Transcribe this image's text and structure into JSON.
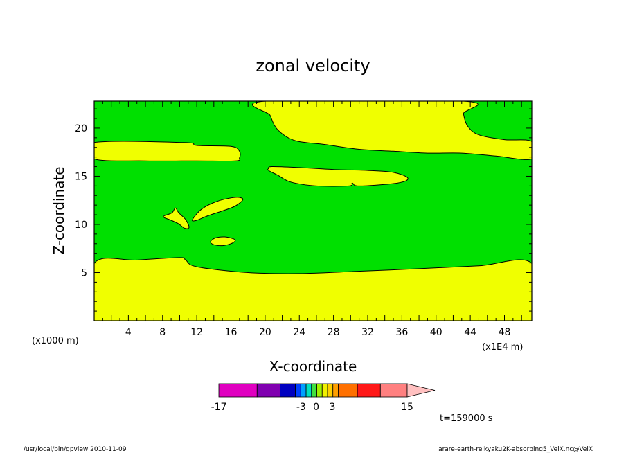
{
  "chart_data": {
    "type": "contour",
    "title": "zonal velocity",
    "xlabel": "X-coordinate",
    "ylabel": "Z-coordinate",
    "x_unit_left": "(x1000 m)",
    "x_unit_right": "(x1E4 m)",
    "xlim": [
      0,
      51.2
    ],
    "ylim": [
      0,
      22.8
    ],
    "x_ticks": [
      4,
      8,
      12,
      16,
      20,
      24,
      28,
      32,
      36,
      40,
      44,
      48
    ],
    "y_ticks": [
      5,
      10,
      15,
      20
    ],
    "colors": {
      "background_region": "#00e000",
      "positive_region": "#f0ff00",
      "outline": "#000000"
    },
    "regions": {
      "bottom_positive_band": [
        [
          0,
          0
        ],
        [
          51.2,
          0
        ],
        [
          51.2,
          5.95
        ],
        [
          45,
          5.7
        ],
        [
          38,
          5.4
        ],
        [
          30,
          5.1
        ],
        [
          24,
          4.9
        ],
        [
          18,
          5.0
        ],
        [
          12,
          5.6
        ],
        [
          10.7,
          6.3
        ],
        [
          10,
          6.55
        ],
        [
          5,
          6.3
        ],
        [
          0,
          5.95
        ]
      ],
      "left_upper_band": [
        [
          0,
          18.5
        ],
        [
          10.5,
          18.5
        ],
        [
          12,
          18.2
        ],
        [
          16,
          18.1
        ],
        [
          17,
          17.6
        ],
        [
          17,
          16.9
        ],
        [
          16.5,
          16.6
        ],
        [
          12,
          16.6
        ],
        [
          6,
          16.6
        ],
        [
          0,
          16.8
        ]
      ],
      "top_middle_lobe": [
        [
          20.1,
          22.8
        ],
        [
          43.2,
          22.8
        ],
        [
          43.2,
          21.5
        ],
        [
          43.7,
          20.2
        ],
        [
          45,
          19.3
        ],
        [
          48,
          18.8
        ],
        [
          51.2,
          18.6
        ],
        [
          51.2,
          16.8
        ],
        [
          47,
          17.1
        ],
        [
          43,
          17.4
        ],
        [
          39,
          17.4
        ],
        [
          35,
          17.6
        ],
        [
          31,
          17.8
        ],
        [
          27,
          18.3
        ],
        [
          23.5,
          18.7
        ],
        [
          21.5,
          19.8
        ],
        [
          20.6,
          21.3
        ]
      ],
      "middle_ellipse": [
        [
          20.4,
          15.8
        ],
        [
          20.8,
          16.0
        ],
        [
          24,
          15.9
        ],
        [
          28,
          15.7
        ],
        [
          32,
          15.6
        ],
        [
          35,
          15.4
        ],
        [
          36.7,
          14.8
        ],
        [
          35.5,
          14.3
        ],
        [
          31,
          14.0
        ],
        [
          30.2,
          14.3
        ],
        [
          29.8,
          14.0
        ],
        [
          26,
          14.0
        ],
        [
          23,
          14.4
        ],
        [
          21.5,
          15.1
        ],
        [
          20.4,
          15.6
        ]
      ],
      "small_blob_a": [
        [
          8.2,
          10.9
        ],
        [
          9.1,
          11.2
        ],
        [
          9.5,
          11.7
        ],
        [
          9.9,
          11.2
        ],
        [
          10.7,
          10.5
        ],
        [
          11.1,
          9.7
        ],
        [
          10.6,
          9.6
        ],
        [
          9.8,
          10.1
        ],
        [
          8.8,
          10.5
        ],
        [
          8.2,
          10.7
        ]
      ],
      "small_blob_b": [
        [
          11.5,
          10.5
        ],
        [
          12.6,
          11.6
        ],
        [
          14.4,
          12.4
        ],
        [
          16.5,
          12.8
        ],
        [
          17.4,
          12.6
        ],
        [
          16.5,
          11.9
        ],
        [
          15,
          11.4
        ],
        [
          13.3,
          10.9
        ],
        [
          11.9,
          10.4
        ]
      ],
      "small_blob_c": [
        [
          13.6,
          8.2
        ],
        [
          14.2,
          8.6
        ],
        [
          15.3,
          8.7
        ],
        [
          16.3,
          8.5
        ],
        [
          16.5,
          8.3
        ],
        [
          16,
          8.0
        ],
        [
          15,
          7.8
        ],
        [
          14,
          7.9
        ]
      ]
    },
    "colorbar": {
      "segments": [
        "#e000c0",
        "#8000b0",
        "#0000c0",
        "#0040ff",
        "#00a0ff",
        "#00e0c0",
        "#40e040",
        "#a0f000",
        "#f0f000",
        "#ffd000",
        "#ffa000",
        "#ff7000",
        "#ff1818",
        "#ff8080"
      ],
      "segment_weights": [
        5,
        3,
        2,
        0.7,
        0.7,
        0.7,
        0.7,
        0.7,
        0.7,
        0.7,
        0.7,
        2.5,
        3,
        3.5
      ],
      "extend_color": "#ffc0c0",
      "labels": [
        "-17",
        "-3",
        "0",
        "3",
        "15"
      ],
      "label_positions": [
        0,
        0.437,
        0.517,
        0.603,
        1.0
      ]
    }
  },
  "time_label": "t=159000 s",
  "footer_left": "/usr/local/bin/gpview  2010-11-09",
  "footer_right": "arare-earth-reikyaku2K-absorbing5_VelX.nc@VelX"
}
